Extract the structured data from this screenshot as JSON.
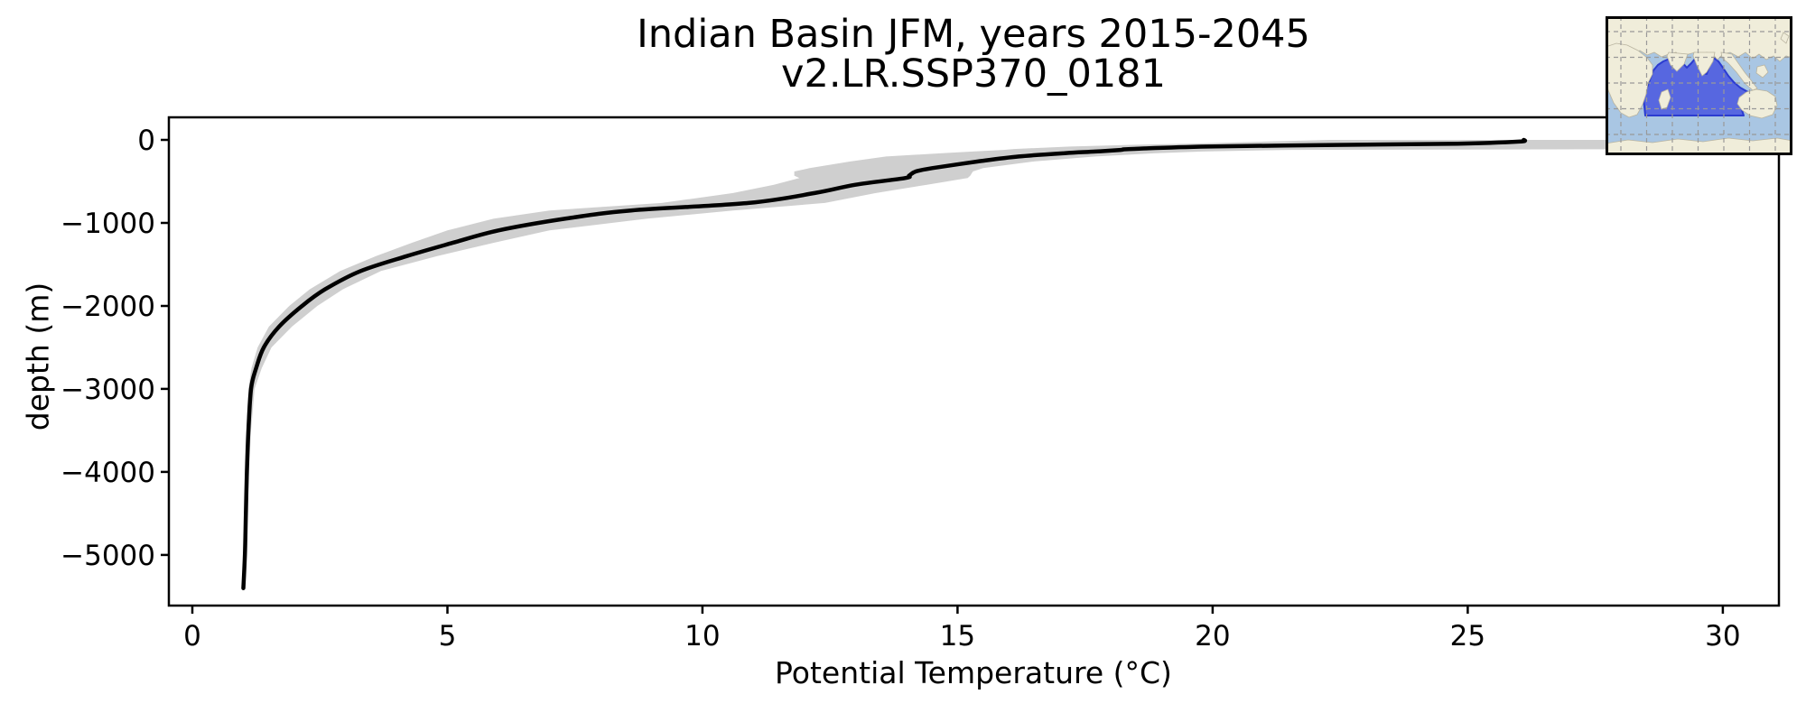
{
  "chart_data": {
    "type": "line",
    "title": "Indian Basin JFM, years 2015-2045",
    "subtitle": "v2.LR.SSP370_0181",
    "xlabel": "Potential Temperature (°C)",
    "ylabel": "depth (m)",
    "xlim": [
      -0.46,
      31.1
    ],
    "ylim": [
      -5610,
      272
    ],
    "xticks": [
      0,
      5,
      10,
      15,
      20,
      25,
      30
    ],
    "yticks": [
      0,
      -1000,
      -2000,
      -3000,
      -4000,
      -5000
    ],
    "grid": false,
    "legend_position": "none",
    "colors": {
      "mean_line": "#000000",
      "band": "#cfcfcf",
      "axes": "#000000",
      "background": "#ffffff"
    },
    "profile": {
      "depth_m": [
        0,
        -20,
        -45,
        -60,
        -80,
        -110,
        -120,
        -140,
        -160,
        -200,
        -260,
        -340,
        -380,
        -430,
        -460,
        -540,
        -640,
        -760,
        -850,
        -950,
        -1090,
        -1240,
        -1400,
        -1580,
        -1800,
        -2000,
        -2250,
        -2500,
        -2750,
        -3000,
        -3500,
        -4000,
        -4500,
        -5000,
        -5400
      ],
      "mean_temp_c": [
        26.1,
        26.0,
        24.8,
        22.6,
        19.9,
        18.4,
        18.2,
        17.7,
        17.1,
        16.2,
        15.4,
        14.5,
        14.18,
        14.05,
        13.97,
        13.0,
        12.2,
        10.9,
        8.6,
        7.3,
        6.0,
        5.1,
        4.2,
        3.3,
        2.6,
        2.15,
        1.7,
        1.4,
        1.25,
        1.15,
        1.1,
        1.07,
        1.05,
        1.03,
        1.0
      ],
      "band_min_temp_c": [
        22.3,
        21.0,
        19.5,
        18.4,
        17.2,
        16.1,
        15.9,
        15.3,
        14.7,
        13.6,
        12.9,
        12.1,
        11.8,
        11.8,
        11.9,
        11.4,
        10.6,
        9.2,
        7.0,
        5.9,
        5.0,
        4.3,
        3.6,
        2.9,
        2.3,
        1.9,
        1.5,
        1.28,
        1.16,
        1.1,
        1.06,
        1.04,
        1.02,
        1.0,
        0.97
      ],
      "band_max_temp_c": [
        30.7,
        30.7,
        30.7,
        30.7,
        30.7,
        30.7,
        21.5,
        19.8,
        18.9,
        17.7,
        16.5,
        15.5,
        15.3,
        15.25,
        15.2,
        14.4,
        13.4,
        12.4,
        10.6,
        8.9,
        7.0,
        5.9,
        4.8,
        3.7,
        2.95,
        2.45,
        1.95,
        1.55,
        1.36,
        1.22,
        1.15,
        1.11,
        1.08,
        1.06,
        1.03
      ]
    },
    "inset_map": {
      "highlighted_region": "Indian Basin",
      "colors": {
        "ocean": "#a9c6e3",
        "land": "#f0edda",
        "land_edge": "#b9b4a0",
        "region_fill": "#5767e0",
        "region_edge": "#2b3bd0",
        "grid": "#999999",
        "border": "#000000"
      },
      "grid_start": 17,
      "grid_step": 28.5,
      "land": [
        [
          [
            0,
            0
          ],
          [
            207,
            0
          ],
          [
            207,
            46
          ],
          [
            200,
            44
          ],
          [
            193,
            50
          ],
          [
            186,
            44
          ],
          [
            178,
            48
          ],
          [
            170,
            42
          ],
          [
            163,
            47
          ],
          [
            155,
            40
          ],
          [
            147,
            45
          ],
          [
            138,
            40
          ],
          [
            130,
            42
          ],
          [
            124,
            48
          ],
          [
            118,
            42
          ],
          [
            112,
            40
          ],
          [
            106,
            44
          ],
          [
            99,
            40
          ],
          [
            92,
            42
          ],
          [
            85,
            46
          ],
          [
            78,
            40
          ],
          [
            70,
            42
          ],
          [
            62,
            45
          ],
          [
            54,
            40
          ],
          [
            46,
            43
          ],
          [
            38,
            38
          ],
          [
            30,
            42
          ],
          [
            22,
            37
          ],
          [
            14,
            40
          ],
          [
            7,
            36
          ],
          [
            0,
            38
          ]
        ],
        [
          [
            98,
            40
          ],
          [
            121,
            40
          ],
          [
            119,
            50
          ],
          [
            112,
            62
          ],
          [
            107,
            66
          ],
          [
            101,
            54
          ],
          [
            97,
            44
          ]
        ],
        [
          [
            70,
            40
          ],
          [
            91,
            42
          ],
          [
            87,
            53
          ],
          [
            79,
            61
          ],
          [
            72,
            54
          ],
          [
            68,
            44
          ]
        ],
        [
          [
            128,
            40
          ],
          [
            140,
            42
          ],
          [
            147,
            52
          ],
          [
            154,
            62
          ],
          [
            162,
            72
          ],
          [
            168,
            80
          ],
          [
            163,
            82
          ],
          [
            154,
            74
          ],
          [
            145,
            62
          ],
          [
            136,
            52
          ],
          [
            129,
            46
          ]
        ],
        [
          [
            168,
            56
          ],
          [
            176,
            54
          ],
          [
            180,
            62
          ],
          [
            174,
            68
          ],
          [
            167,
            63
          ]
        ],
        [
          [
            0,
            34
          ],
          [
            12,
            30
          ],
          [
            24,
            32
          ],
          [
            36,
            38
          ],
          [
            46,
            46
          ],
          [
            52,
            54
          ],
          [
            52,
            64
          ],
          [
            47,
            74
          ],
          [
            45,
            86
          ],
          [
            41,
            98
          ],
          [
            35,
            109
          ],
          [
            26,
            112
          ],
          [
            17,
            107
          ],
          [
            9,
            96
          ],
          [
            3,
            82
          ],
          [
            0,
            68
          ]
        ],
        [
          [
            62,
            84
          ],
          [
            69,
            81
          ],
          [
            72,
            90
          ],
          [
            68,
            101
          ],
          [
            62,
            103
          ],
          [
            59,
            93
          ]
        ],
        [
          [
            148,
            90
          ],
          [
            156,
            84
          ],
          [
            167,
            81
          ],
          [
            179,
            83
          ],
          [
            188,
            89
          ],
          [
            190,
            99
          ],
          [
            185,
            109
          ],
          [
            173,
            113
          ],
          [
            160,
            110
          ],
          [
            151,
            104
          ],
          [
            146,
            97
          ]
        ],
        [
          [
            197,
            18
          ],
          [
            203,
            22
          ],
          [
            200,
            30
          ],
          [
            194,
            25
          ]
        ],
        [
          [
            0,
            141
          ],
          [
            25,
            137
          ],
          [
            52,
            140
          ],
          [
            80,
            136
          ],
          [
            108,
            139
          ],
          [
            136,
            135
          ],
          [
            163,
            138
          ],
          [
            190,
            135
          ],
          [
            207,
            138
          ],
          [
            207,
            154
          ],
          [
            0,
            154
          ]
        ]
      ],
      "region": [
        [
          44,
          110
        ],
        [
          43,
          100
        ],
        [
          42,
          92
        ],
        [
          44,
          84
        ],
        [
          47,
          76
        ],
        [
          50,
          68
        ],
        [
          53,
          60
        ],
        [
          58,
          54
        ],
        [
          64,
          50
        ],
        [
          71,
          47
        ],
        [
          78,
          44
        ],
        [
          84,
          50
        ],
        [
          90,
          57
        ],
        [
          95,
          52
        ],
        [
          100,
          46
        ],
        [
          104,
          54
        ],
        [
          108,
          63
        ],
        [
          112,
          64
        ],
        [
          116,
          52
        ],
        [
          120,
          46
        ],
        [
          125,
          50
        ],
        [
          130,
          57
        ],
        [
          136,
          66
        ],
        [
          142,
          73
        ],
        [
          149,
          79
        ],
        [
          156,
          83
        ],
        [
          162,
          86
        ],
        [
          156,
          90
        ],
        [
          152,
          96
        ],
        [
          151,
          104
        ],
        [
          153,
          110
        ]
      ]
    }
  }
}
